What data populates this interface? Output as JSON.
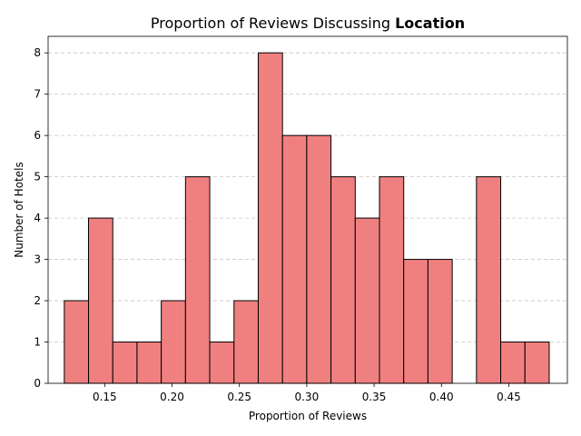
{
  "chart_data": {
    "type": "bar",
    "title_prefix": "Proportion of Reviews Discussing ",
    "title_emphasis": "Location",
    "xlabel": "Proportion of Reviews",
    "ylabel": "Number of Hotels",
    "xlim": [
      0.108,
      0.4935
    ],
    "ylim": [
      0,
      8.4
    ],
    "grid": "y-dashed",
    "bin_edges": [
      0.12,
      0.138,
      0.156,
      0.174,
      0.192,
      0.21,
      0.228,
      0.246,
      0.264,
      0.282,
      0.3,
      0.318,
      0.336,
      0.354,
      0.372,
      0.39,
      0.408,
      0.426,
      0.444,
      0.462,
      0.48
    ],
    "values": [
      2,
      4,
      1,
      1,
      2,
      5,
      1,
      2,
      8,
      6,
      6,
      5,
      4,
      5,
      3,
      3,
      0,
      5,
      1,
      1
    ],
    "x_ticks": [
      "0.15",
      "0.20",
      "0.25",
      "0.30",
      "0.35",
      "0.40",
      "0.45"
    ],
    "y_ticks": [
      "0",
      "1",
      "2",
      "3",
      "4",
      "5",
      "6",
      "7",
      "8"
    ],
    "colors": {
      "bar_fill": "#f08080",
      "bar_edge": "#000000"
    }
  }
}
